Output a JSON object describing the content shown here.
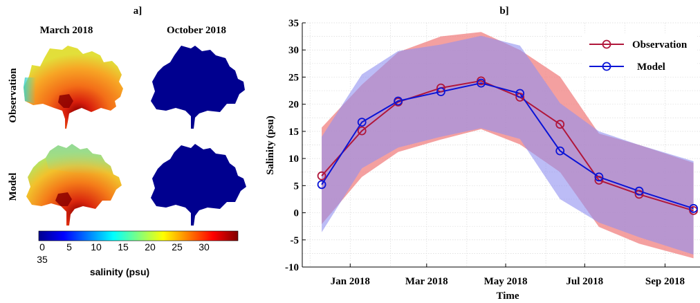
{
  "chart_data": [
    {
      "panel": "a]",
      "type": "heatmap",
      "columns": [
        "March 2018",
        "October 2018"
      ],
      "rows": [
        "Observation",
        "Model"
      ],
      "colorbar": {
        "label": "salinity (psu)",
        "ticks": [
          "0",
          "5",
          "10",
          "15",
          "20",
          "25",
          "30",
          "35"
        ],
        "range": [
          0,
          35
        ],
        "colormap": "jet"
      },
      "values": {
        "Observation": {
          "March 2018": "approx. 15–35 psu (high ~30–35 in lower/central bay, ~15 near left edge)",
          "October 2018": "approx. 0 psu (uniform)"
        },
        "Model": {
          "March 2018": "approx. 15–35 psu (high ~30–35 in lower bay, ~15–20 in upper bay)",
          "October 2018": "approx. 0 psu (uniform)"
        }
      }
    },
    {
      "panel": "b]",
      "type": "line",
      "xlabel": "Time",
      "ylabel": "Salinity (psu)",
      "ylim": [
        -10,
        35
      ],
      "yticks": [
        -10,
        -5,
        0,
        5,
        10,
        15,
        20,
        25,
        30,
        35
      ],
      "xlim": [
        "2017-11-25",
        "2018-09-28"
      ],
      "xticks": [
        {
          "date": "2018-01-01",
          "label": "Jan 2018"
        },
        {
          "date": "2018-03-01",
          "label": "Mar 2018"
        },
        {
          "date": "2018-05-01",
          "label": "May 2018"
        },
        {
          "date": "2018-07-01",
          "label": "Jul 2018"
        },
        {
          "date": "2018-09-01",
          "label": "Sep 2018"
        }
      ],
      "grid": true,
      "legend_position": "top-right",
      "series": [
        {
          "name": "Observation",
          "color": "#b0163a",
          "band_color": "#f08080",
          "x": [
            "2017-12-10",
            "2018-01-10",
            "2018-02-07",
            "2018-03-12",
            "2018-04-12",
            "2018-05-12",
            "2018-06-12",
            "2018-07-12",
            "2018-08-12",
            "2018-09-23"
          ],
          "values": [
            6.8,
            15.1,
            20.4,
            23.0,
            24.3,
            21.3,
            16.3,
            6.0,
            3.4,
            0.4
          ],
          "upper": [
            15.7,
            23.6,
            29.6,
            32.5,
            33.3,
            30.0,
            25.1,
            14.6,
            12.5,
            9.2
          ],
          "lower": [
            -2.1,
            6.6,
            11.2,
            13.5,
            15.4,
            12.6,
            7.5,
            -2.6,
            -5.7,
            -8.4
          ]
        },
        {
          "name": "Model",
          "color": "#0a14d6",
          "band_color": "#8f90f0",
          "x": [
            "2017-12-10",
            "2018-01-10",
            "2018-02-07",
            "2018-03-12",
            "2018-04-12",
            "2018-05-12",
            "2018-06-12",
            "2018-07-12",
            "2018-08-12",
            "2018-09-23"
          ],
          "values": [
            5.2,
            16.7,
            20.6,
            22.3,
            23.9,
            22.0,
            11.4,
            6.6,
            4.0,
            0.8
          ],
          "upper": [
            14.0,
            25.5,
            29.8,
            31.0,
            32.6,
            30.8,
            20.2,
            15.0,
            12.5,
            9.5
          ],
          "lower": [
            -3.6,
            8.2,
            12.0,
            14.0,
            15.6,
            13.6,
            2.5,
            -1.8,
            -4.5,
            -7.7
          ]
        }
      ]
    }
  ]
}
